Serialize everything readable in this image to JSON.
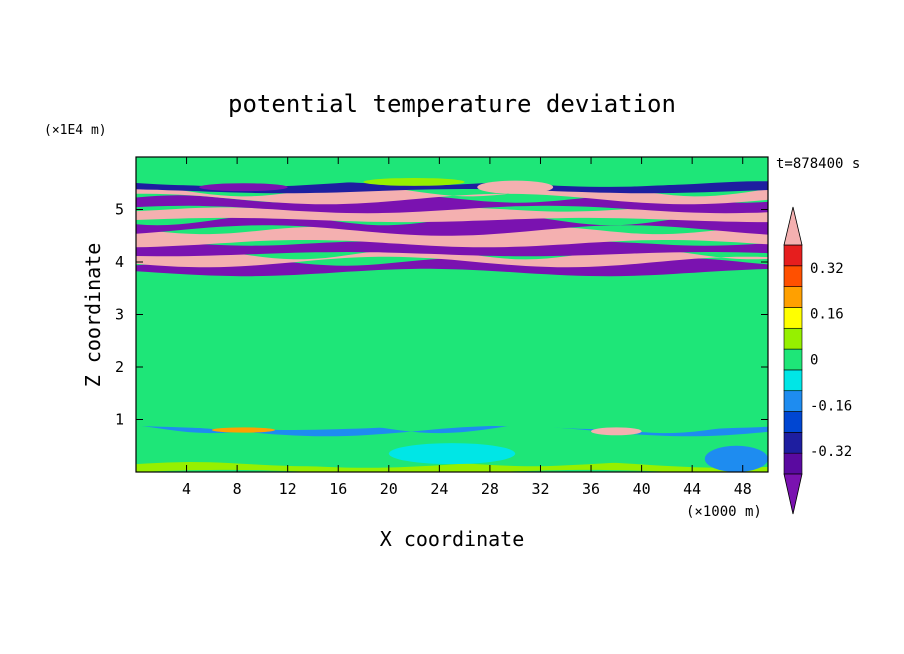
{
  "chart_data": {
    "type": "heatmap",
    "title": "potential temperature deviation",
    "xlabel": "X coordinate",
    "ylabel": "Z coordinate",
    "x_scale_label": "(×1000 m)",
    "y_scale_label": "(×1E4 m)",
    "time_label": "t=878400 s",
    "xlim": [
      0,
      50
    ],
    "ylim": [
      0,
      6
    ],
    "x_ticks": [
      4,
      8,
      12,
      16,
      20,
      24,
      28,
      32,
      36,
      40,
      44,
      48
    ],
    "x_tick_labels": [
      "4",
      "8",
      "12",
      "16",
      "20",
      "24",
      "28",
      "32",
      "36",
      "40",
      "44",
      "48"
    ],
    "y_ticks": [
      1,
      2,
      3,
      4,
      5
    ],
    "y_tick_labels": [
      "1",
      "2",
      "3",
      "4",
      "5"
    ],
    "colorbar": {
      "levels": [
        -0.4,
        -0.32,
        -0.24,
        -0.16,
        -0.08,
        0,
        0.08,
        0.16,
        0.24,
        0.32,
        0.4
      ],
      "colors": [
        "#5a0aa0",
        "#1e1ea0",
        "#0046d2",
        "#1e8cf0",
        "#00e6e6",
        "#1ee678",
        "#96f000",
        "#ffff00",
        "#ffa000",
        "#ff5000",
        "#e61e1e"
      ],
      "under_color": "#7a12b0",
      "over_color": "#f4b0b0",
      "tick_values": [
        0.32,
        0.16,
        0,
        -0.16,
        -0.32
      ],
      "tick_labels": [
        "0.32",
        "0.16",
        "0",
        "-0.16",
        "-0.32"
      ]
    },
    "bands": [
      {
        "z": [
          0.0,
          0.15
        ],
        "value": 0.12
      },
      {
        "z": [
          0.15,
          0.78
        ],
        "value": 0.02
      },
      {
        "z": [
          0.78,
          0.84
        ],
        "value": -0.12
      },
      {
        "z": [
          0.84,
          3.8
        ],
        "value": 0.03
      },
      {
        "z": [
          3.8,
          4.0
        ],
        "value": -0.45
      },
      {
        "z": [
          4.0,
          4.15
        ],
        "value": 0.45
      },
      {
        "z": [
          4.15,
          4.35
        ],
        "value": -0.45
      },
      {
        "z": [
          4.35,
          4.6
        ],
        "value": 0.45
      },
      {
        "z": [
          4.6,
          4.8
        ],
        "value": -0.45
      },
      {
        "z": [
          4.8,
          5.0
        ],
        "value": 0.45
      },
      {
        "z": [
          5.0,
          5.2
        ],
        "value": -0.45
      },
      {
        "z": [
          5.2,
          5.35
        ],
        "value": 0.45
      },
      {
        "z": [
          5.35,
          5.5
        ],
        "value": -0.25
      },
      {
        "z": [
          5.5,
          6.0
        ],
        "value": 0.05
      }
    ],
    "features": [
      {
        "x": [
          6,
          11
        ],
        "z": [
          0.75,
          0.85
        ],
        "value": 0.3
      },
      {
        "x": [
          36,
          40
        ],
        "z": [
          0.7,
          0.85
        ],
        "value": 0.45
      },
      {
        "x": [
          5,
          12
        ],
        "z": [
          5.35,
          5.5
        ],
        "value": -0.45
      },
      {
        "x": [
          18,
          26
        ],
        "z": [
          5.45,
          5.6
        ],
        "value": 0.15
      },
      {
        "x": [
          27,
          33
        ],
        "z": [
          5.3,
          5.55
        ],
        "value": 0.45
      },
      {
        "x": [
          20,
          30
        ],
        "z": [
          0.15,
          0.55
        ],
        "value": -0.05
      },
      {
        "x": [
          45,
          50
        ],
        "z": [
          0.0,
          0.5
        ],
        "value": -0.15
      }
    ]
  }
}
